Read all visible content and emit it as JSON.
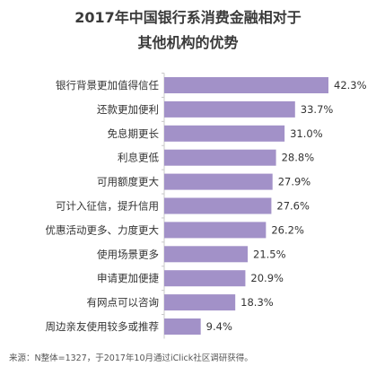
{
  "chart_data": {
    "type": "bar",
    "orientation": "horizontal",
    "title_lines": [
      "2017年中国银行系消费金融相对于",
      "其他机构的优势"
    ],
    "categories": [
      "银行背景更加值得信任",
      "还款更加便利",
      "免息期更长",
      "利息更低",
      "可用额度更大",
      "可计入征信，提升信用",
      "优惠活动更多、力度更大",
      "使用场景更多",
      "申请更加便捷",
      "有网点可以咨询",
      "周边亲友使用较多或推荐"
    ],
    "values": [
      42.3,
      33.7,
      31.0,
      28.8,
      27.9,
      27.6,
      26.2,
      21.5,
      20.9,
      18.3,
      9.4
    ],
    "value_labels": [
      "42.3%",
      "33.7%",
      "31.0%",
      "28.8%",
      "27.9%",
      "27.6%",
      "26.2%",
      "21.5%",
      "20.9%",
      "18.3%",
      "9.4%"
    ],
    "xlim": [
      0,
      42.3
    ],
    "grid": false,
    "legend": "none",
    "bar_color": "#a291c8",
    "axis_color": "#c8c8c8"
  },
  "source_note": "来源：N整体=1327，于2017年10月通过iClick社区调研获得。"
}
